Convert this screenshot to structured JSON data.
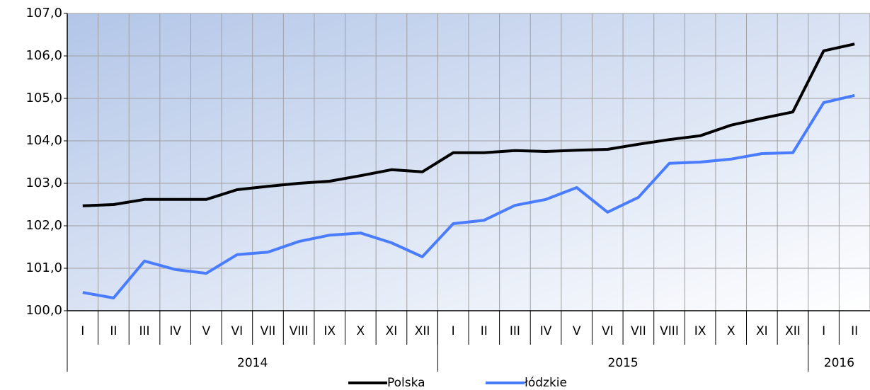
{
  "chart_data": {
    "type": "line",
    "categories": [
      "I",
      "II",
      "III",
      "IV",
      "V",
      "VI",
      "VII",
      "VIII",
      "IX",
      "X",
      "XI",
      "XII",
      "I",
      "II",
      "III",
      "IV",
      "V",
      "VI",
      "VII",
      "VIII",
      "IX",
      "X",
      "XI",
      "XII",
      "I",
      "II"
    ],
    "groups": [
      "2014",
      "2015",
      "2016"
    ],
    "series": [
      {
        "name": "Polska",
        "color": "#000000",
        "values": [
          102.47,
          102.5,
          102.62,
          102.62,
          102.62,
          102.85,
          102.93,
          103.0,
          103.05,
          103.18,
          103.32,
          103.27,
          103.72,
          103.72,
          103.77,
          103.75,
          103.78,
          103.8,
          103.92,
          104.03,
          104.12,
          104.37,
          104.53,
          104.68,
          106.12,
          106.28
        ]
      },
      {
        "name": "łódzkie",
        "color": "#4a7cff",
        "values": [
          100.43,
          100.3,
          101.17,
          100.97,
          100.88,
          101.32,
          101.38,
          101.63,
          101.78,
          101.83,
          101.6,
          101.27,
          102.05,
          102.13,
          102.48,
          102.62,
          102.9,
          102.32,
          102.67,
          103.47,
          103.5,
          103.57,
          103.7,
          103.72,
          104.9,
          105.07
        ]
      }
    ],
    "ylim": [
      100,
      107
    ],
    "yticks": [
      {
        "value": 100,
        "label": "100,0"
      },
      {
        "value": 101,
        "label": "101,0"
      },
      {
        "value": 102,
        "label": "102,0"
      },
      {
        "value": 103,
        "label": "103,0"
      },
      {
        "value": 104,
        "label": "104,0"
      },
      {
        "value": 105,
        "label": "105,0"
      },
      {
        "value": 106,
        "label": "106,0"
      },
      {
        "value": 107,
        "label": "107,0"
      }
    ],
    "grid": true
  }
}
